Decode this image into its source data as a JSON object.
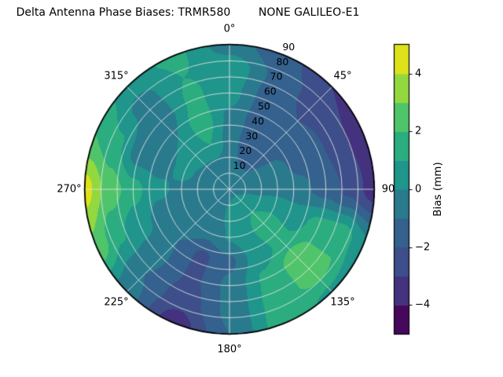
{
  "chart_data": {
    "type": "heatmap",
    "projection": "polar",
    "title": "Delta Antenna Phase Biases: TRMR580        NONE GALILEO-E1",
    "theta_zero_location": "N",
    "theta_direction": "clockwise",
    "grid_on": true,
    "theta_ticks_deg": [
      0,
      45,
      90,
      135,
      180,
      225,
      270,
      315
    ],
    "theta_tick_labels": [
      "0°",
      "45°",
      "90",
      "135°",
      "180°",
      "225°",
      "270°",
      "315°"
    ],
    "r_ticks": [
      10,
      20,
      30,
      40,
      50,
      60,
      70,
      80,
      90
    ],
    "r_tick_labels": [
      "10",
      "20",
      "30",
      "40",
      "50",
      "60",
      "70",
      "80",
      "90"
    ],
    "r_max": 90,
    "colorbar": {
      "label": "Bias (mm)",
      "range": [
        -5,
        5
      ],
      "ticks": [
        4,
        2,
        0,
        -2,
        -4
      ],
      "tick_labels": [
        "4",
        "2",
        "0",
        "−2",
        "−4"
      ],
      "band_colors": [
        "#46085c",
        "#45327e",
        "#3d4e8a",
        "#34618d",
        "#2a7a8e",
        "#1f958b",
        "#2bad80",
        "#50c46a",
        "#94d840",
        "#dee21b"
      ]
    },
    "grid": {
      "azimuth_deg": [
        0,
        22.5,
        45,
        67.5,
        90,
        112.5,
        135,
        157.5,
        180,
        202.5,
        225,
        247.5,
        270,
        292.5,
        315,
        337.5
      ],
      "zenith_deg": [
        0,
        15,
        30,
        45,
        60,
        75,
        90
      ],
      "bias_mm": [
        [
          -0.3,
          -0.6,
          -0.4,
          -0.2,
          0.4,
          0.8,
          -0.5
        ],
        [
          -0.3,
          -1.0,
          -1.6,
          -1.5,
          -1.4,
          -1.2,
          -1.6
        ],
        [
          -0.3,
          -1.0,
          -1.3,
          -1.6,
          -2.0,
          -2.4,
          -3.0
        ],
        [
          -0.3,
          -0.6,
          -0.7,
          -1.2,
          -1.8,
          -2.8,
          -3.8
        ],
        [
          -0.3,
          -0.3,
          -0.4,
          -0.8,
          -1.4,
          -2.3,
          -3.5
        ],
        [
          -0.3,
          0.2,
          0.8,
          0.6,
          1.4,
          1.6,
          0.3
        ],
        [
          -0.3,
          0.8,
          1.6,
          1.3,
          2.6,
          2.4,
          0.8
        ],
        [
          -0.3,
          0.6,
          0.8,
          0.5,
          1.2,
          1.4,
          1.6
        ],
        [
          -0.3,
          0.2,
          0.1,
          -1.2,
          -0.8,
          -0.8,
          -1.0
        ],
        [
          -0.3,
          -0.3,
          -0.7,
          -2.2,
          -2.2,
          -2.6,
          -3.6
        ],
        [
          -0.3,
          -0.4,
          -0.4,
          -1.0,
          -0.9,
          -1.0,
          -0.6
        ],
        [
          -0.3,
          -0.6,
          -0.3,
          -0.4,
          0.4,
          1.2,
          2.8
        ],
        [
          -0.3,
          -0.7,
          -0.2,
          0.2,
          1.4,
          2.6,
          4.4
        ],
        [
          -0.3,
          -0.6,
          0.3,
          -0.4,
          -0.6,
          1.2,
          2.0
        ],
        [
          -0.3,
          -0.4,
          0.6,
          0.0,
          -0.7,
          -0.4,
          0.6
        ],
        [
          -0.3,
          -0.5,
          1.0,
          1.6,
          1.2,
          1.0,
          1.2
        ]
      ]
    }
  }
}
